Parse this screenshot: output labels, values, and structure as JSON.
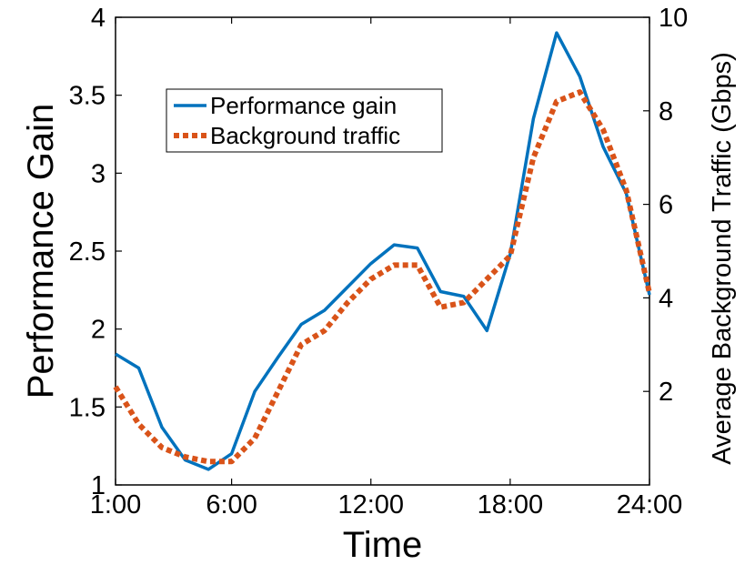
{
  "chart_data": {
    "type": "line",
    "title": "",
    "xlabel": "Time",
    "ylabel": "Performance Gain",
    "y2label": "Average Background Traffic (Gbps)",
    "xlim": [
      1,
      24
    ],
    "ylim": [
      1,
      4
    ],
    "y2lim": [
      0,
      10
    ],
    "x": [
      1,
      2,
      3,
      4,
      5,
      6,
      7,
      8,
      9,
      10,
      11,
      12,
      13,
      14,
      15,
      16,
      17,
      18,
      19,
      20,
      21,
      22,
      23,
      24
    ],
    "xticks": [
      {
        "value": 1,
        "label": "1:00"
      },
      {
        "value": 6,
        "label": "6:00"
      },
      {
        "value": 12,
        "label": "12:00"
      },
      {
        "value": 18,
        "label": "18:00"
      },
      {
        "value": 24,
        "label": "24:00"
      }
    ],
    "yticks": [
      {
        "value": 1,
        "label": "1"
      },
      {
        "value": 1.5,
        "label": "1.5"
      },
      {
        "value": 2,
        "label": "2"
      },
      {
        "value": 2.5,
        "label": "2.5"
      },
      {
        "value": 3,
        "label": "3"
      },
      {
        "value": 3.5,
        "label": "3.5"
      },
      {
        "value": 4,
        "label": "4"
      }
    ],
    "y2ticks": [
      {
        "value": 2,
        "label": "2"
      },
      {
        "value": 4,
        "label": "4"
      },
      {
        "value": 6,
        "label": "6"
      },
      {
        "value": 8,
        "label": "8"
      },
      {
        "value": 10,
        "label": "10"
      }
    ],
    "grid": false,
    "legend_position": "upper-left",
    "series": [
      {
        "name": "Performance gain",
        "axis": "left",
        "color": "#0072BD",
        "style": "solid",
        "values": [
          1.84,
          1.75,
          1.37,
          1.16,
          1.1,
          1.2,
          1.6,
          1.82,
          2.03,
          2.12,
          2.27,
          2.42,
          2.54,
          2.52,
          2.24,
          2.21,
          1.99,
          2.48,
          3.35,
          3.9,
          3.62,
          3.17,
          2.87,
          2.22
        ]
      },
      {
        "name": "Background traffic",
        "axis": "right",
        "color": "#D95319",
        "style": "dotted",
        "values": [
          2.1,
          1.3,
          0.8,
          0.6,
          0.5,
          0.5,
          1.0,
          2.0,
          3.0,
          3.3,
          3.9,
          4.4,
          4.7,
          4.7,
          3.8,
          3.9,
          4.4,
          4.9,
          7.0,
          8.2,
          8.4,
          7.6,
          6.3,
          4.1
        ]
      }
    ]
  }
}
